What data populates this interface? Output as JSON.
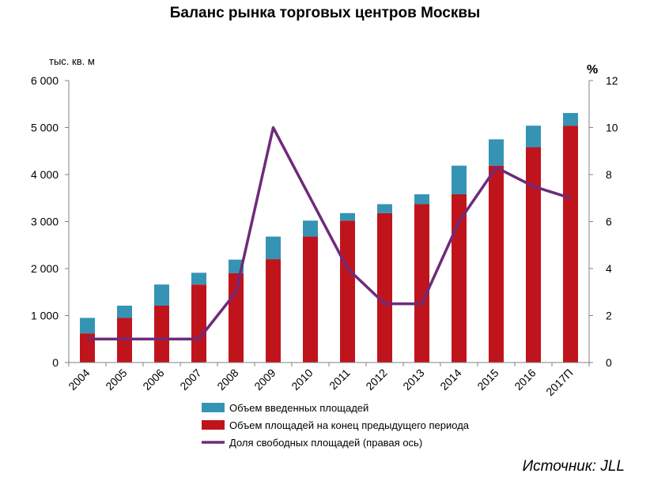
{
  "chart_data": {
    "type": "bar",
    "title": "Баланс рынка торговых центров Москвы",
    "ylabel": "тыс. кв. м",
    "y2label": "%",
    "ylim": [
      0,
      6000
    ],
    "y2lim": [
      0,
      12
    ],
    "yticks": [
      "0",
      "1 000",
      "2 000",
      "3 000",
      "4 000",
      "5 000",
      "6 000"
    ],
    "y2ticks": [
      "0",
      "2",
      "4",
      "6",
      "8",
      "10",
      "12"
    ],
    "categories": [
      "2004",
      "2005",
      "2006",
      "2007",
      "2008",
      "2009",
      "2010",
      "2011",
      "2012",
      "2013",
      "2014",
      "2015",
      "2016",
      "2017П"
    ],
    "stacked": true,
    "series": [
      {
        "name": "Объем площадей на конец предыдущего периода",
        "kind": "bar",
        "color": "#c0141d",
        "values": [
          620,
          950,
          1210,
          1660,
          1900,
          2200,
          2680,
          3020,
          3180,
          3370,
          3580,
          4190,
          4580,
          5040
        ]
      },
      {
        "name": "Объем введенных площадей",
        "kind": "bar",
        "color": "#3594b4",
        "values": [
          330,
          260,
          450,
          250,
          290,
          480,
          340,
          160,
          190,
          210,
          610,
          560,
          460,
          270
        ]
      },
      {
        "name": "Доля свободных площадей (правая ось)",
        "kind": "line",
        "axis": "right",
        "color": "#6f2a7a",
        "values": [
          1,
          1,
          1,
          1,
          3,
          10,
          7,
          4,
          2.5,
          2.5,
          6,
          8.3,
          7.5,
          7
        ]
      }
    ],
    "legend": [
      {
        "label": "Объем введенных площадей",
        "color": "#3594b4",
        "kind": "bar"
      },
      {
        "label": "Объем площадей на конец предыдущего периода",
        "color": "#c0141d",
        "kind": "bar"
      },
      {
        "label": "Доля свободных площадей (правая ось)",
        "color": "#6f2a7a",
        "kind": "line"
      }
    ],
    "legend_position": "bottom-center",
    "grid": false,
    "source": "Источник: JLL"
  }
}
